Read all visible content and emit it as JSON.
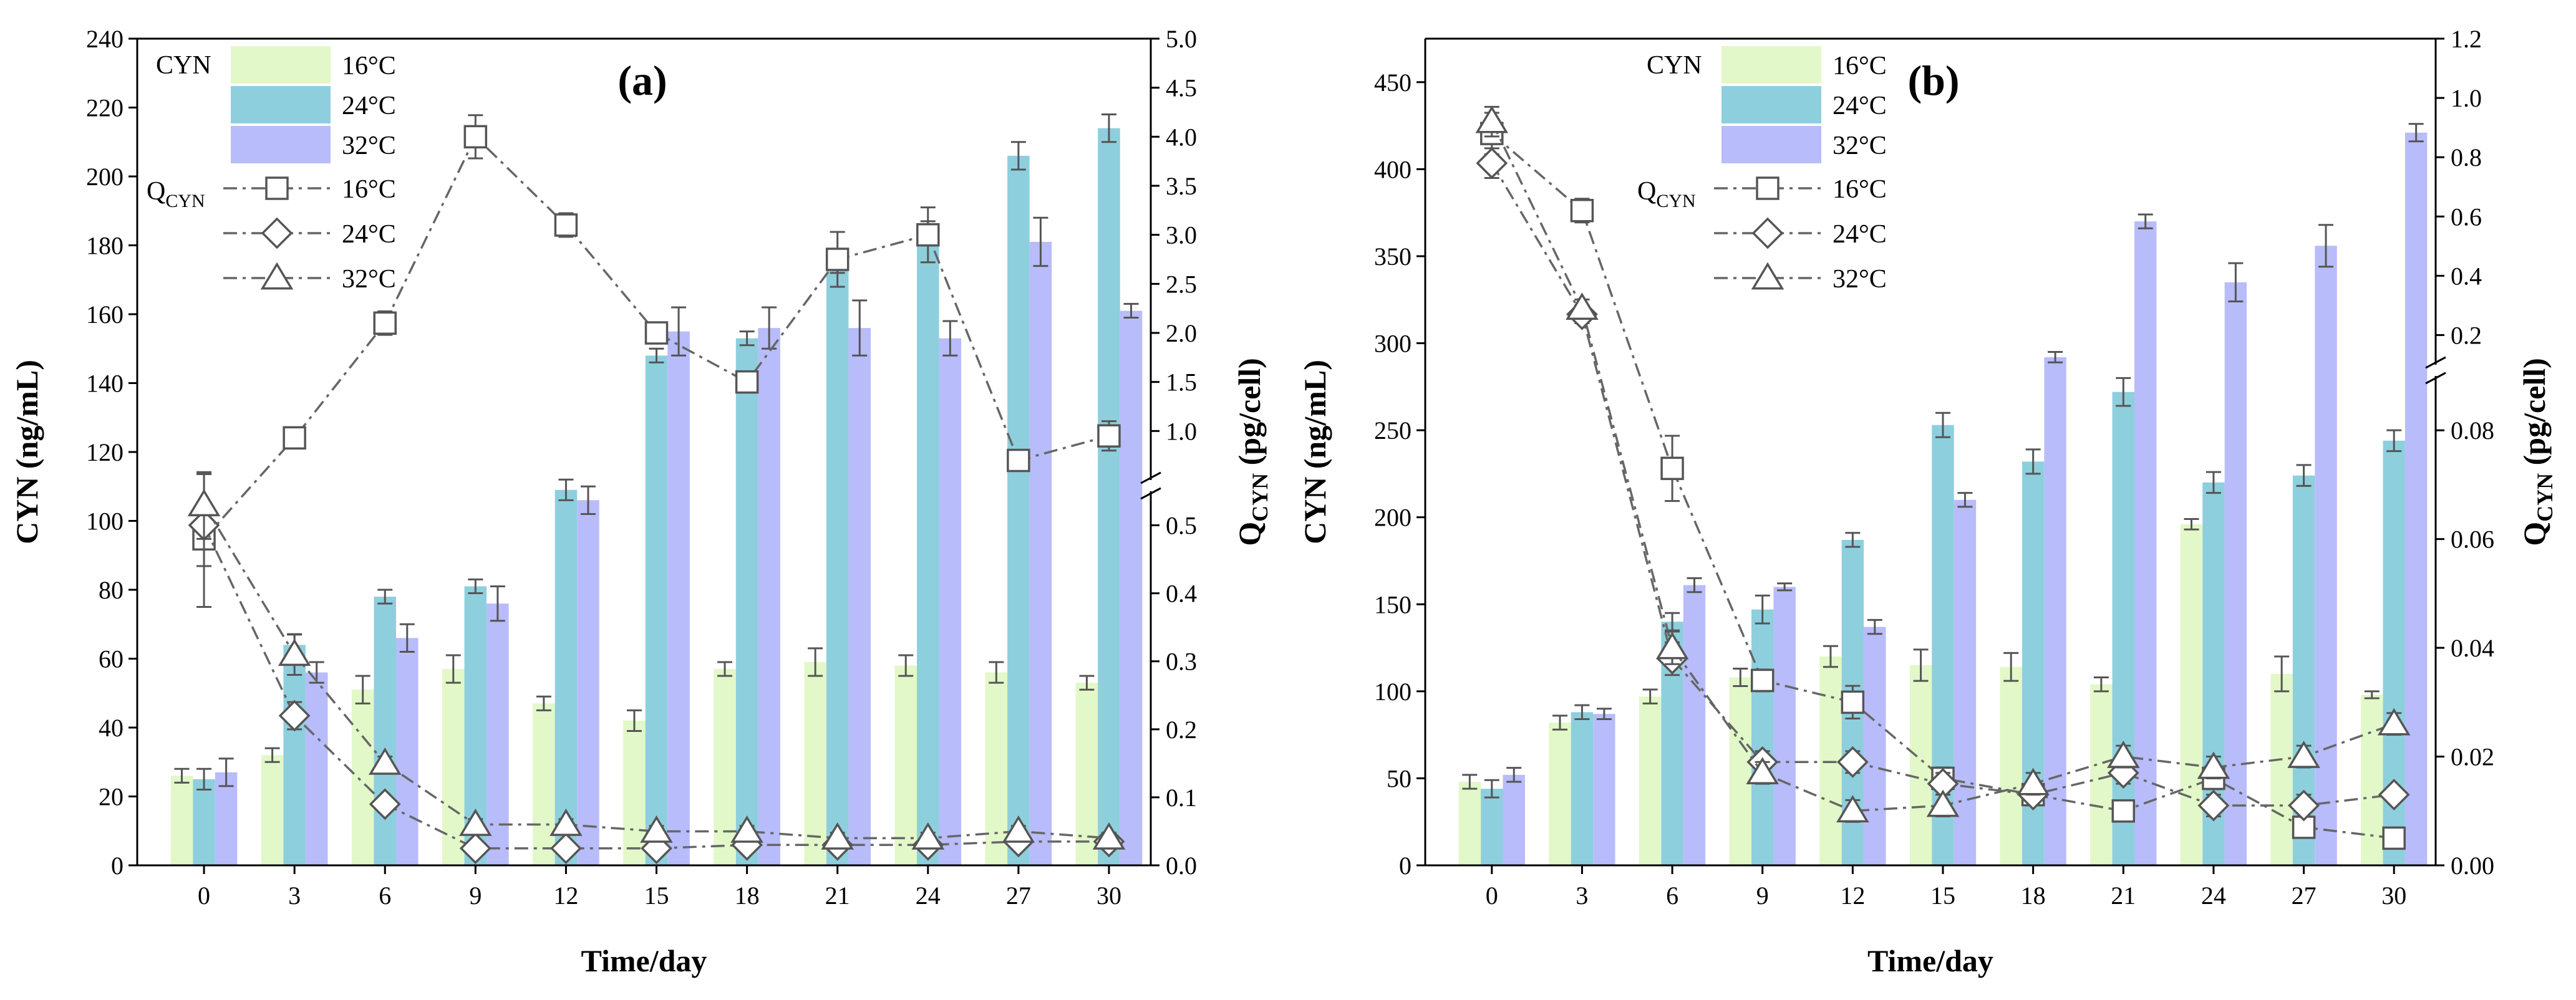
{
  "chart_data": [
    {
      "type": "bar+line",
      "panel_label": "(a)",
      "xlabel": "Time/day",
      "ylabel": "CYN (ng/mL)",
      "ylabel_right_main": "Q",
      "ylabel_right_sub": "CYN",
      "ylabel_right_unit": " (pg/cell)",
      "categories": [
        "0",
        "3",
        "6",
        "9",
        "12",
        "15",
        "18",
        "21",
        "24",
        "27",
        "30"
      ],
      "x_values": [
        0,
        3,
        6,
        9,
        12,
        15,
        18,
        21,
        24,
        27,
        30
      ],
      "left_axis": {
        "ylim": [
          0,
          240
        ],
        "ticks": [
          0,
          20,
          40,
          60,
          80,
          100,
          120,
          140,
          160,
          180,
          200,
          220,
          240
        ]
      },
      "right_axis": {
        "broken": true,
        "lower": {
          "range": [
            0,
            0.55
          ],
          "ticks": [
            0.0,
            0.1,
            0.2,
            0.3,
            0.4,
            0.5
          ],
          "labels": [
            "0.0",
            "0.1",
            "0.2",
            "0.3",
            "0.4",
            "0.5"
          ]
        },
        "upper": {
          "range": [
            0.5,
            5.0
          ],
          "ticks": [
            1.0,
            1.5,
            2.0,
            2.5,
            3.0,
            3.5,
            4.0,
            4.5,
            5.0
          ],
          "labels": [
            "1.0",
            "1.5",
            "2.0",
            "2.5",
            "3.0",
            "3.5",
            "4.0",
            "4.5",
            "5.0"
          ]
        }
      },
      "bar_legend_title": "CYN",
      "line_legend_title_main": "Q",
      "line_legend_title_sub": "CYN",
      "bar_series": [
        {
          "name": "16°C",
          "color": "#e2f8c8",
          "values": [
            26,
            32,
            51,
            57,
            47,
            42,
            57,
            59,
            58,
            56,
            53
          ],
          "errors": [
            2,
            2,
            4,
            4,
            2,
            3,
            2,
            4,
            3,
            3,
            2
          ]
        },
        {
          "name": "24°C",
          "color": "#8ecfde",
          "values": [
            25,
            64,
            78,
            81,
            109,
            148,
            153,
            175,
            184,
            206,
            214
          ],
          "errors": [
            3,
            3,
            2,
            2,
            3,
            2,
            2,
            3,
            3,
            4,
            4
          ]
        },
        {
          "name": "32°C",
          "color": "#b8bcfa",
          "values": [
            27,
            56,
            66,
            76,
            106,
            155,
            156,
            156,
            153,
            181,
            161
          ],
          "errors": [
            4,
            3,
            4,
            5,
            4,
            7,
            6,
            8,
            5,
            7,
            2
          ]
        }
      ],
      "line_series": [
        {
          "name": "16°C",
          "marker": "square",
          "values": [
            0.48,
            0.93,
            2.1,
            4.0,
            3.1,
            2.0,
            1.5,
            2.75,
            3.0,
            0.7,
            0.95
          ],
          "errors": [
            0.1,
            0.04,
            0.12,
            0.22,
            0.12,
            0.08,
            0.05,
            0.28,
            0.28,
            0.1,
            0.15
          ]
        },
        {
          "name": "24°C",
          "marker": "diamond",
          "values": [
            0.5,
            0.22,
            0.09,
            0.025,
            0.025,
            0.025,
            0.03,
            0.03,
            0.03,
            0.035,
            0.035
          ],
          "errors": [
            0.06,
            0.02,
            0.01,
            0.006,
            0.006,
            0.006,
            0.006,
            0.006,
            0.006,
            0.006,
            0.006
          ]
        },
        {
          "name": "32°C",
          "marker": "triangle",
          "values": [
            0.53,
            0.31,
            0.15,
            0.06,
            0.06,
            0.05,
            0.05,
            0.04,
            0.04,
            0.05,
            0.04
          ],
          "errors": [
            0.05,
            0.03,
            0.01,
            0.008,
            0.008,
            0.008,
            0.008,
            0.008,
            0.008,
            0.008,
            0.008
          ]
        }
      ]
    },
    {
      "type": "bar+line",
      "panel_label": "(b)",
      "xlabel": "Time/day",
      "ylabel": "CYN (ng/mL)",
      "ylabel_right_main": "Q",
      "ylabel_right_sub": "CYN",
      "ylabel_right_unit": " (pg/cell)",
      "categories": [
        "0",
        "3",
        "6",
        "9",
        "12",
        "15",
        "18",
        "21",
        "24",
        "27",
        "30"
      ],
      "x_values": [
        0,
        3,
        6,
        9,
        12,
        15,
        18,
        21,
        24,
        27,
        30
      ],
      "left_axis": {
        "ylim": [
          0,
          475
        ],
        "ticks": [
          0,
          50,
          100,
          150,
          200,
          250,
          300,
          350,
          400,
          450
        ]
      },
      "right_axis": {
        "broken": true,
        "lower": {
          "range": [
            0,
            0.09
          ],
          "ticks": [
            0.0,
            0.02,
            0.04,
            0.06,
            0.08
          ],
          "labels": [
            "0.00",
            "0.02",
            "0.04",
            "0.06",
            "0.08"
          ]
        },
        "upper": {
          "range": [
            0.1,
            1.2
          ],
          "ticks": [
            0.2,
            0.4,
            0.6,
            0.8,
            1.0,
            1.2
          ],
          "labels": [
            "0.2",
            "0.4",
            "0.6",
            "0.8",
            "1.0",
            "1.2"
          ]
        }
      },
      "bar_legend_title": "CYN",
      "line_legend_title_main": "Q",
      "line_legend_title_sub": "CYN",
      "bar_series": [
        {
          "name": "16°C",
          "color": "#e2f8c8",
          "values": [
            48,
            82,
            97,
            108,
            120,
            115,
            114,
            104,
            196,
            110,
            98
          ],
          "errors": [
            4,
            4,
            4,
            5,
            6,
            9,
            8,
            4,
            3,
            10,
            2
          ]
        },
        {
          "name": "24°C",
          "color": "#8ecfde",
          "values": [
            44,
            88,
            140,
            147,
            187,
            253,
            232,
            272,
            220,
            224,
            244
          ],
          "errors": [
            5,
            4,
            5,
            8,
            4,
            7,
            7,
            8,
            6,
            6,
            6
          ]
        },
        {
          "name": "32°C",
          "color": "#b8bcfa",
          "values": [
            52,
            87,
            161,
            160,
            137,
            210,
            292,
            370,
            335,
            356,
            421
          ],
          "errors": [
            4,
            3,
            4,
            2,
            4,
            4,
            3,
            4,
            11,
            12,
            5
          ]
        }
      ],
      "line_series": [
        {
          "name": "16°C",
          "marker": "square",
          "values": [
            0.88,
            0.62,
            0.073,
            0.034,
            0.03,
            0.016,
            0.013,
            0.01,
            0.016,
            0.007,
            0.005
          ],
          "errors": [
            0.07,
            0.04,
            0.006,
            0.002,
            0.003,
            0.002,
            0.002,
            0.001,
            0.002,
            0.001,
            0.001
          ]
        },
        {
          "name": "24°C",
          "marker": "diamond",
          "values": [
            0.78,
            0.27,
            0.038,
            0.019,
            0.019,
            0.015,
            0.013,
            0.017,
            0.011,
            0.011,
            0.013
          ],
          "errors": [
            0.05,
            0.03,
            0.003,
            0.002,
            0.002,
            0.002,
            0.002,
            0.002,
            0.002,
            0.002,
            0.001
          ]
        },
        {
          "name": "32°C",
          "marker": "triangle",
          "values": [
            0.92,
            0.29,
            0.04,
            0.017,
            0.01,
            0.011,
            0.015,
            0.02,
            0.018,
            0.02,
            0.026
          ],
          "errors": [
            0.05,
            0.03,
            0.003,
            0.002,
            0.002,
            0.002,
            0.002,
            0.002,
            0.002,
            0.002,
            0.002
          ]
        }
      ]
    }
  ]
}
